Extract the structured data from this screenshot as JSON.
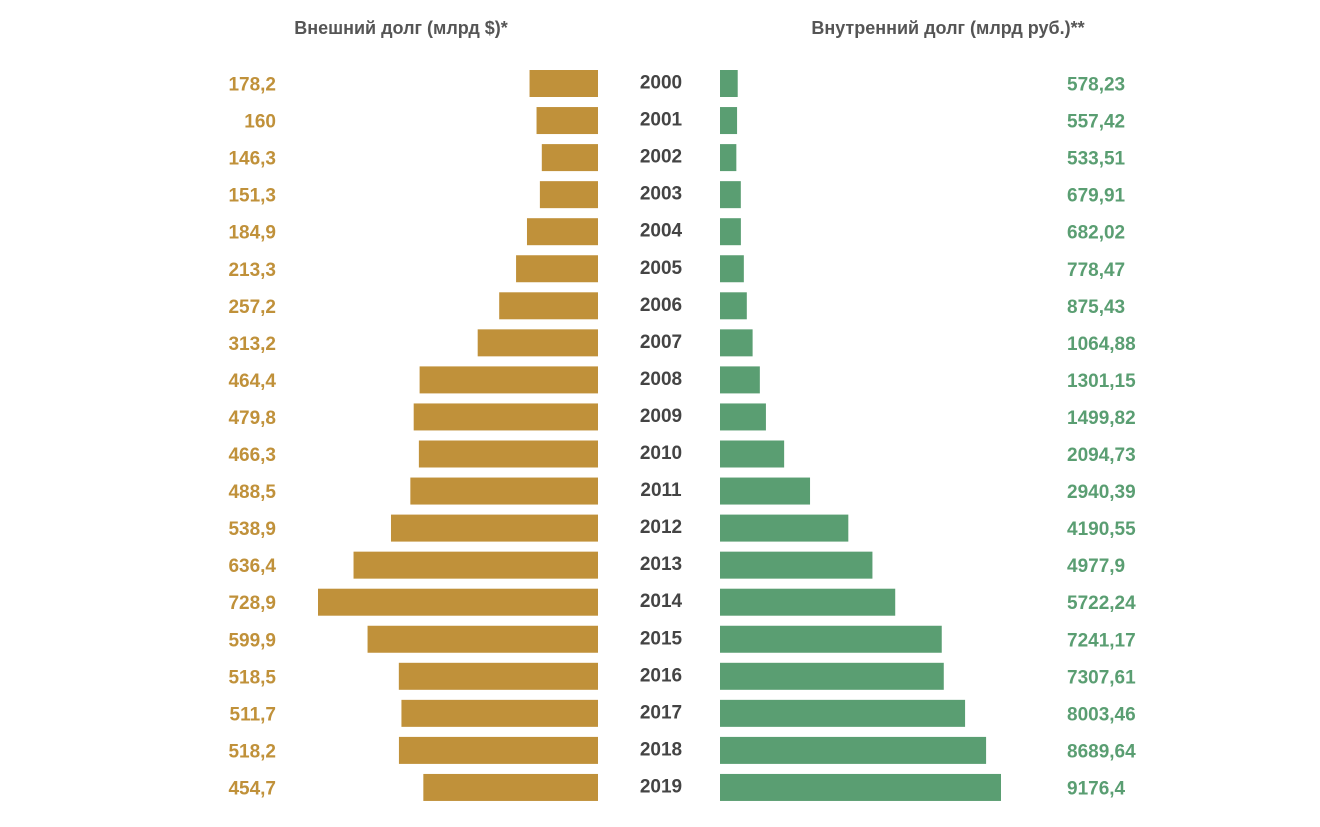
{
  "colors": {
    "external": "#c0913a",
    "internal": "#5a9e72",
    "year": "#444444",
    "title": "#555555"
  },
  "chart_data": {
    "type": "bar",
    "layout": "back-to-back horizontal bars",
    "categories": [
      "2000",
      "2001",
      "2002",
      "2003",
      "2004",
      "2005",
      "2006",
      "2007",
      "2008",
      "2009",
      "2010",
      "2011",
      "2012",
      "2013",
      "2014",
      "2015",
      "2016",
      "2017",
      "2018",
      "2019"
    ],
    "series": [
      {
        "key": "external",
        "name": "Внешний долг (млрд $)*",
        "value_labels": [
          "178,2",
          "160",
          "146,3",
          "151,3",
          "184,9",
          "213,3",
          "257,2",
          "313,2",
          "464,4",
          "479,8",
          "466,3",
          "488,5",
          "538,9",
          "636,4",
          "728,9",
          "599,9",
          "518,5",
          "511,7",
          "518,2",
          "454,7"
        ],
        "values": [
          178.2,
          160,
          146.3,
          151.3,
          184.9,
          213.3,
          257.2,
          313.2,
          464.4,
          479.8,
          466.3,
          488.5,
          538.9,
          636.4,
          728.9,
          599.9,
          518.5,
          511.7,
          518.2,
          454.7
        ]
      },
      {
        "key": "internal",
        "name": "Внутренний долг (млрд руб.)**",
        "value_labels": [
          "578,23",
          "557,42",
          "533,51",
          "679,91",
          "682,02",
          "778,47",
          "875,43",
          "1064,88",
          "1301,15",
          "1499,82",
          "2094,73",
          "2940,39",
          "4190,55",
          "4977,9",
          "5722,24",
          "7241,17",
          "7307,61",
          "8003,46",
          "8689,64",
          "9176,4"
        ],
        "values": [
          578.23,
          557.42,
          533.51,
          679.91,
          682.02,
          778.47,
          875.43,
          1064.88,
          1301.15,
          1499.82,
          2094.73,
          2940.39,
          4190.55,
          4977.9,
          5722.24,
          7241.17,
          7307.61,
          8003.46,
          8689.64,
          9176.4
        ]
      }
    ],
    "grid": false,
    "legend": "none"
  }
}
